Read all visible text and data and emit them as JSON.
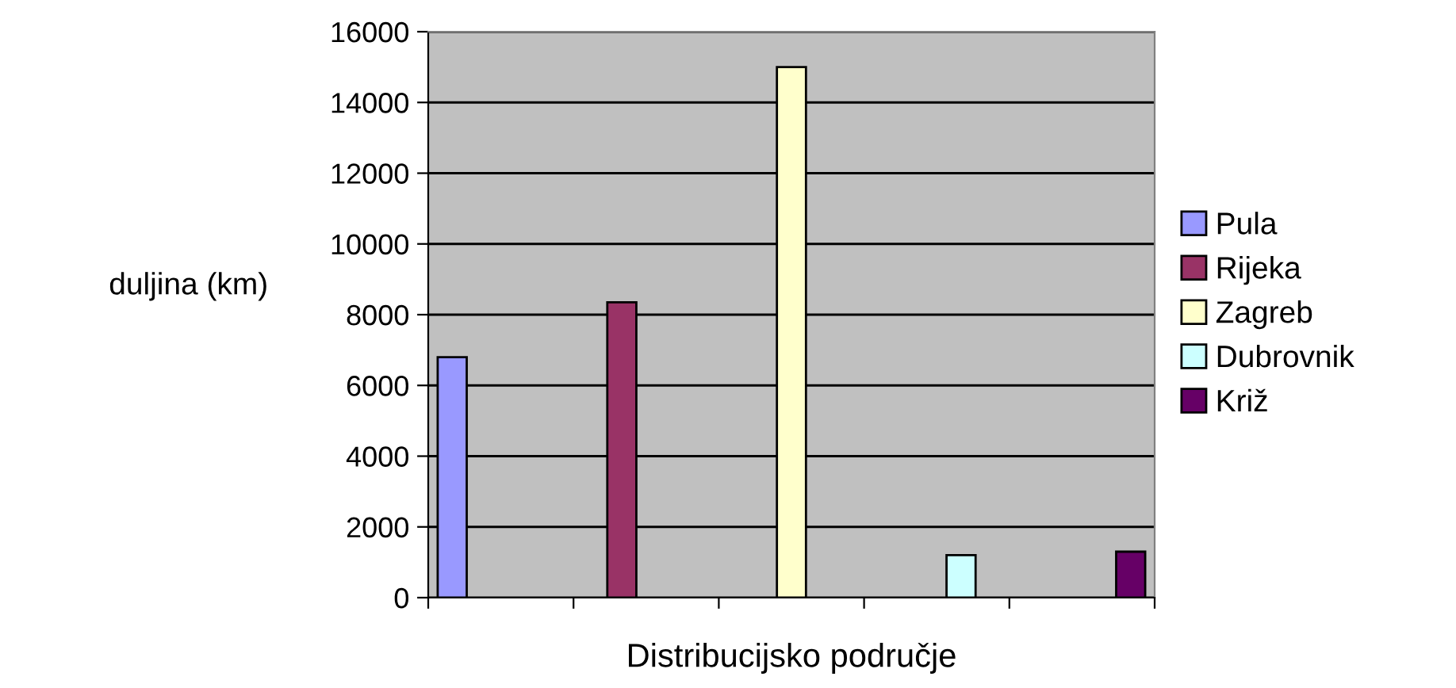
{
  "chart_data": {
    "type": "bar",
    "xlabel": "Distribucijsko područje",
    "ylabel": "duljina (km)",
    "categories": [
      null
    ],
    "series": [
      {
        "name": "Pula",
        "color": "#9999ff",
        "values": [
          6800
        ]
      },
      {
        "name": "Rijeka",
        "color": "#993366",
        "values": [
          8350
        ]
      },
      {
        "name": "Zagreb",
        "color": "#ffffcc",
        "values": [
          15000
        ]
      },
      {
        "name": "Dubrovnik",
        "color": "#ccffff",
        "values": [
          1200
        ]
      },
      {
        "name": "Križ",
        "color": "#660066",
        "values": [
          1300
        ]
      }
    ],
    "ylim": [
      0,
      16000
    ],
    "yticks": [
      0,
      2000,
      4000,
      6000,
      8000,
      10000,
      12000,
      14000,
      16000
    ],
    "grid": "y",
    "legend": "right"
  }
}
